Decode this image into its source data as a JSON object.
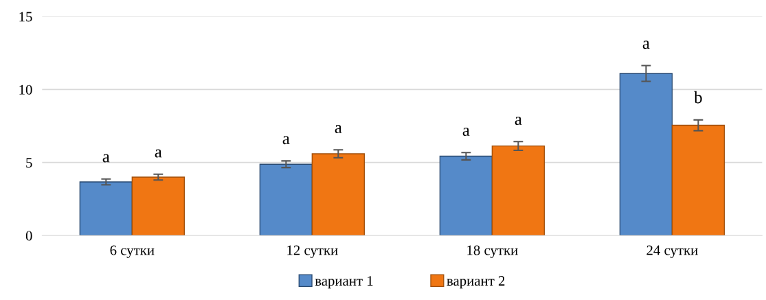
{
  "chart_data": {
    "type": "bar",
    "categories": [
      "6 сутки",
      "12 сутки",
      "18 сутки",
      "24 сутки"
    ],
    "series": [
      {
        "name": "вариант 1",
        "color": "#558ac9",
        "values": [
          3.67,
          4.88,
          5.43,
          11.1
        ],
        "errors": [
          0.2,
          0.23,
          0.25,
          0.54
        ],
        "value_labels": [
          "a",
          "a",
          "a",
          "a"
        ]
      },
      {
        "name": "вариант 2",
        "color": "#f07613",
        "values": [
          4.0,
          5.6,
          6.13,
          7.55
        ],
        "errors": [
          0.2,
          0.27,
          0.3,
          0.37
        ],
        "value_labels": [
          "a",
          "a",
          "a",
          "b"
        ]
      }
    ],
    "ylim": [
      0,
      15
    ],
    "yticks": [
      0,
      5,
      10,
      15
    ],
    "grid": "y",
    "legend": "bottom"
  }
}
